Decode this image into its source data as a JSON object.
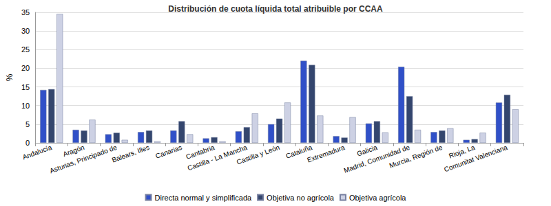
{
  "chart_data": {
    "type": "bar",
    "title": "Distribución de cuota líquida total atribuible por CCAA",
    "y_label": "%",
    "categories": [
      "Andalucía",
      "Aragón",
      "Asturias, Principado de",
      "Balears, Illes",
      "Canarias",
      "Cantabria",
      "Castilla - La Mancha",
      "Castilla y León",
      "Cataluña",
      "Extremadura",
      "Galicia",
      "Madrid, Comunidad de",
      "Murcia, Región de",
      "Rioja, La",
      "Comunitat Valenciana"
    ],
    "series": [
      {
        "name": "Directa normal y simplificada",
        "color": "#3050c8",
        "values": [
          14.2,
          3.5,
          2.3,
          2.9,
          3.3,
          1.2,
          3.1,
          5.0,
          22.0,
          1.8,
          5.2,
          20.4,
          2.9,
          0.8,
          10.8
        ]
      },
      {
        "name": "Objetiva no agrícola",
        "color": "#34466e",
        "values": [
          14.4,
          3.3,
          2.7,
          3.3,
          5.8,
          1.5,
          4.2,
          6.5,
          20.9,
          1.4,
          5.8,
          12.5,
          3.3,
          1.0,
          12.9
        ]
      },
      {
        "name": "Objetiva agrícola",
        "color": "#cdd1e4",
        "values": [
          34.6,
          6.2,
          0.8,
          0.4,
          2.3,
          0.4,
          7.9,
          10.8,
          7.3,
          6.9,
          2.8,
          3.5,
          3.9,
          2.7,
          9.0
        ]
      }
    ],
    "ylim": [
      0,
      35
    ],
    "yticks": [
      0,
      5,
      10,
      15,
      20,
      25,
      30,
      35
    ],
    "grid": true,
    "legend": "bottom"
  }
}
